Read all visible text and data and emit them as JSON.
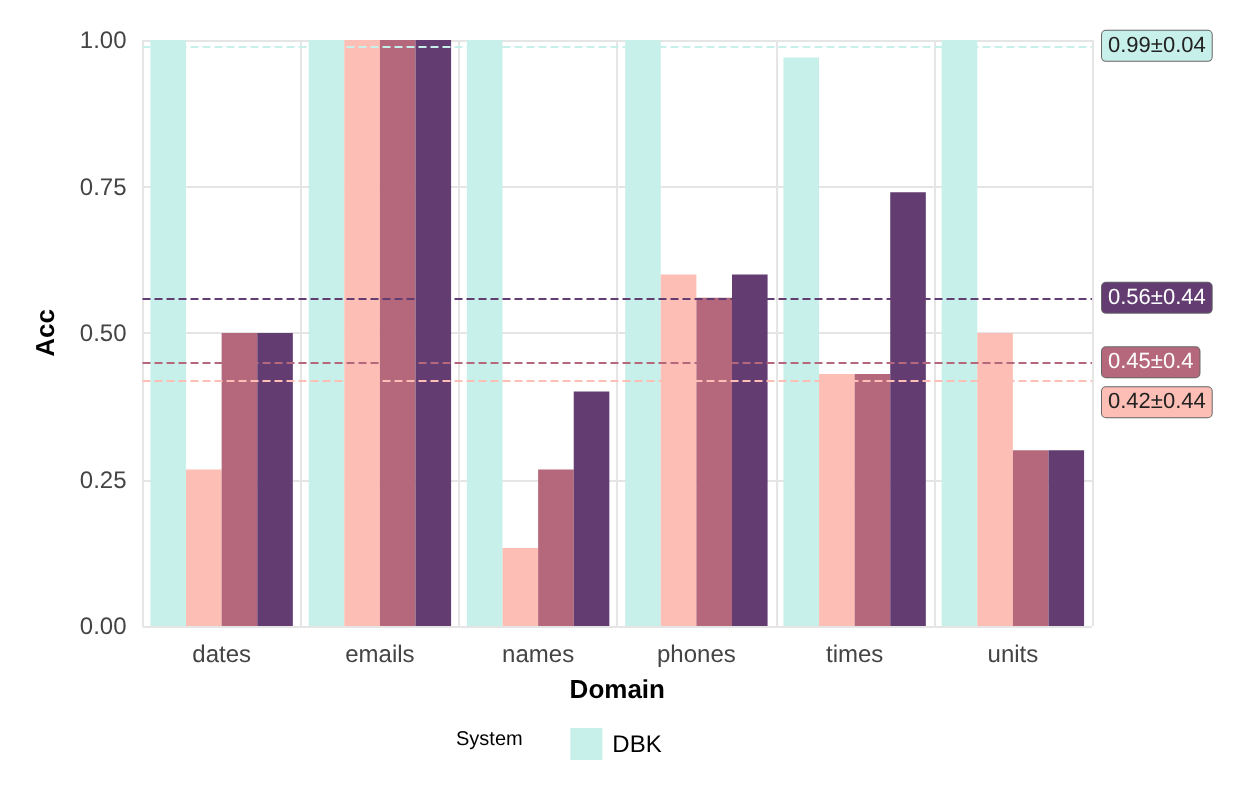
{
  "chart_data": {
    "type": "bar",
    "xlabel": "Domain",
    "ylabel": "Acc",
    "legend_title": "System",
    "categories": [
      "dates",
      "emails",
      "names",
      "phones",
      "times",
      "units"
    ],
    "series": [
      {
        "name": "DBK",
        "color": "#c8f0ea",
        "values": [
          1,
          1,
          1,
          1,
          0.97,
          1
        ]
      },
      {
        "color": "#fdbfb5",
        "values": [
          0.267,
          1,
          0.133,
          0.6,
          0.43,
          0.5
        ]
      },
      {
        "color": "#b5687b",
        "values": [
          0.5,
          1,
          0.267,
          0.56,
          0.43,
          0.3
        ]
      },
      {
        "color": "#633d72",
        "values": [
          0.5,
          1,
          0.4,
          0.6,
          0.74,
          0.3
        ]
      }
    ],
    "ylim": [
      0,
      1.0
    ],
    "yticks": [
      {
        "value": 0,
        "label": "0.00"
      },
      {
        "value": 0.25,
        "label": "0.25"
      },
      {
        "value": 0.5,
        "label": "0.50"
      },
      {
        "value": 0.75,
        "label": "0.75"
      },
      {
        "value": 1,
        "label": "1.00"
      }
    ],
    "ref_lines": [
      {
        "axis": "y",
        "value": 0.99,
        "label": "0.99±0.04",
        "color": "#c8f0ea",
        "line_style": "dashed"
      },
      {
        "axis": "y",
        "value": 0.56,
        "label": "0.56±0.44",
        "color": "#633d72",
        "line_style": "dashed"
      },
      {
        "axis": "y",
        "value": 0.45,
        "label": "0.45±0.4",
        "color": "#b5687b",
        "line_style": "dashed"
      },
      {
        "axis": "y",
        "value": 0.42,
        "label": "0.42±0.44",
        "color": "#fdbfb5",
        "line_style": "dashed"
      }
    ],
    "grid": true,
    "legend": "bottom"
  }
}
